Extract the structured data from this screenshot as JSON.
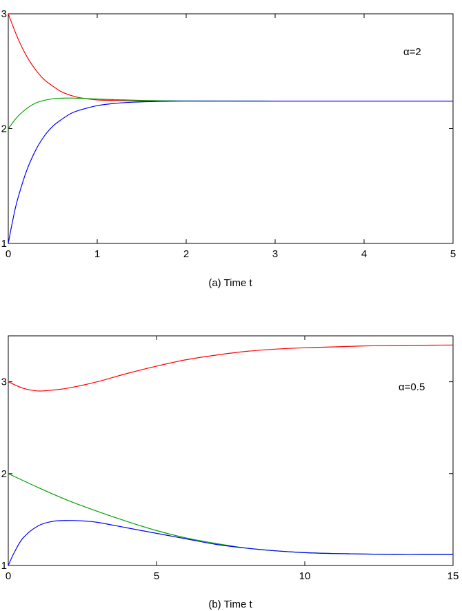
{
  "chart_data": [
    {
      "type": "line",
      "xlabel": "(a) Time t",
      "annotation": "α=2",
      "xlim": [
        0,
        5
      ],
      "ylim": [
        1,
        3
      ],
      "xticks": [
        0,
        1,
        2,
        3,
        4,
        5
      ],
      "yticks": [
        1,
        2,
        3
      ],
      "series": [
        {
          "color": "#ff0000",
          "x": [
            0,
            0.1,
            0.2,
            0.3,
            0.4,
            0.5,
            0.6,
            0.7,
            0.8,
            1.0,
            1.2,
            1.5,
            2.0,
            3.0,
            5.0
          ],
          "y": [
            3.0,
            2.8,
            2.64,
            2.52,
            2.43,
            2.37,
            2.32,
            2.29,
            2.27,
            2.25,
            2.245,
            2.24,
            2.24,
            2.24,
            2.24
          ]
        },
        {
          "color": "#00a000",
          "x": [
            0,
            0.1,
            0.2,
            0.3,
            0.4,
            0.5,
            0.6,
            0.7,
            0.8,
            1.0,
            1.2,
            1.5,
            2.0,
            3.0,
            5.0
          ],
          "y": [
            2.0,
            2.1,
            2.17,
            2.22,
            2.245,
            2.26,
            2.265,
            2.266,
            2.264,
            2.258,
            2.252,
            2.246,
            2.241,
            2.24,
            2.24
          ]
        },
        {
          "color": "#0000ff",
          "x": [
            0,
            0.05,
            0.1,
            0.2,
            0.3,
            0.4,
            0.5,
            0.6,
            0.7,
            0.8,
            1.0,
            1.2,
            1.4,
            1.6,
            2.0,
            3.0,
            5.0
          ],
          "y": [
            1.0,
            1.2,
            1.37,
            1.62,
            1.8,
            1.93,
            2.02,
            2.08,
            2.13,
            2.16,
            2.2,
            2.22,
            2.23,
            2.235,
            2.24,
            2.24,
            2.24
          ]
        }
      ]
    },
    {
      "type": "line",
      "xlabel": "(b) Time t",
      "annotation": "α=0.5",
      "xlim": [
        0,
        15
      ],
      "ylim": [
        1,
        3.5
      ],
      "xticks": [
        0,
        5,
        10,
        15
      ],
      "yticks": [
        1,
        2,
        3
      ],
      "series": [
        {
          "color": "#ff0000",
          "x": [
            0,
            0.5,
            1,
            1.5,
            2,
            3,
            4,
            5,
            6,
            7,
            8,
            9,
            10,
            11,
            12,
            13,
            14,
            15
          ],
          "y": [
            3.0,
            2.93,
            2.9,
            2.91,
            2.93,
            3.0,
            3.09,
            3.17,
            3.24,
            3.29,
            3.33,
            3.355,
            3.37,
            3.38,
            3.39,
            3.395,
            3.398,
            3.4
          ]
        },
        {
          "color": "#00a000",
          "x": [
            0,
            1,
            2,
            3,
            4,
            5,
            6,
            7,
            8,
            9,
            10,
            11,
            12,
            13,
            14,
            15
          ],
          "y": [
            2.0,
            1.85,
            1.71,
            1.59,
            1.48,
            1.38,
            1.3,
            1.24,
            1.19,
            1.16,
            1.14,
            1.13,
            1.125,
            1.12,
            1.12,
            1.12
          ]
        },
        {
          "color": "#0000ff",
          "x": [
            0,
            0.2,
            0.5,
            1,
            1.5,
            2,
            2.5,
            3,
            4,
            5,
            6,
            7,
            8,
            9,
            10,
            11,
            12,
            13,
            14,
            15
          ],
          "y": [
            1.0,
            1.14,
            1.3,
            1.43,
            1.48,
            1.49,
            1.485,
            1.47,
            1.41,
            1.35,
            1.29,
            1.23,
            1.19,
            1.16,
            1.14,
            1.13,
            1.125,
            1.12,
            1.12,
            1.12
          ]
        }
      ]
    }
  ]
}
